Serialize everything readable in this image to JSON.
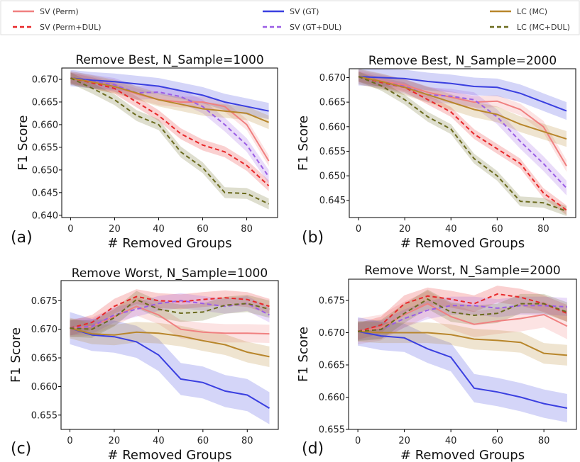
{
  "legend": {
    "entries": [
      {
        "key": "sv_perm",
        "label": "SV (Perm)",
        "color": "#f08080",
        "dashed": false
      },
      {
        "key": "sv_perm_dul",
        "label": "SV (Perm+DUL)",
        "color": "#e8282a",
        "dashed": true
      },
      {
        "key": "sv_gt",
        "label": "SV (GT)",
        "color": "#3a3fe0",
        "dashed": false
      },
      {
        "key": "sv_gt_dul",
        "label": "SV (GT+DUL)",
        "color": "#9b5de5",
        "dashed": true
      },
      {
        "key": "lc_mc",
        "label": "LC (MC)",
        "color": "#b8862b",
        "dashed": false
      },
      {
        "key": "lc_mc_dul",
        "label": "LC (MC+DUL)",
        "color": "#6b6b1e",
        "dashed": true
      }
    ]
  },
  "chart_data": [
    {
      "type": "line",
      "panel_label": "(a)",
      "title": "Remove Best, N_Sample=1000",
      "xlabel": "# Removed Groups",
      "ylabel": "F1 Score",
      "xlim": [
        -4,
        94
      ],
      "ylim": [
        0.6395,
        0.6725
      ],
      "xticks": [
        0,
        20,
        40,
        60,
        80
      ],
      "yticks": [
        0.64,
        0.645,
        0.65,
        0.655,
        0.66,
        0.665,
        0.67
      ],
      "ytick_labels": [
        "0.640",
        "0.645",
        "0.650",
        "0.655",
        "0.660",
        "0.665",
        "0.670"
      ],
      "x": [
        0,
        10,
        20,
        30,
        40,
        50,
        60,
        70,
        80,
        90
      ],
      "series": [
        {
          "key": "sv_perm",
          "values": [
            0.6703,
            0.6695,
            0.6684,
            0.6668,
            0.6655,
            0.665,
            0.665,
            0.664,
            0.66,
            0.652
          ],
          "band": 0.0012
        },
        {
          "key": "sv_perm_dul",
          "values": [
            0.6703,
            0.6692,
            0.668,
            0.665,
            0.662,
            0.658,
            0.6555,
            0.654,
            0.651,
            0.6465
          ],
          "band": 0.0012
        },
        {
          "key": "sv_gt",
          "values": [
            0.6703,
            0.6698,
            0.6695,
            0.669,
            0.6685,
            0.6675,
            0.6665,
            0.665,
            0.664,
            0.663
          ],
          "band": 0.0018
        },
        {
          "key": "sv_gt_dul",
          "values": [
            0.6703,
            0.6695,
            0.6688,
            0.667,
            0.6672,
            0.6662,
            0.664,
            0.66,
            0.6555,
            0.6485
          ],
          "band": 0.0015
        },
        {
          "key": "lc_mc",
          "values": [
            0.6703,
            0.6694,
            0.6684,
            0.667,
            0.6655,
            0.6645,
            0.6635,
            0.663,
            0.6625,
            0.6605
          ],
          "band": 0.0015
        },
        {
          "key": "lc_mc_dul",
          "values": [
            0.6703,
            0.668,
            0.6655,
            0.662,
            0.66,
            0.654,
            0.6505,
            0.645,
            0.6448,
            0.6425
          ],
          "band": 0.0012
        }
      ]
    },
    {
      "type": "line",
      "panel_label": "(b)",
      "title": "Remove Best, N_Sample=2000",
      "xlabel": "# Removed Groups",
      "ylabel": "F1 Score",
      "xlim": [
        -4,
        94
      ],
      "ylim": [
        0.6415,
        0.6718
      ],
      "xticks": [
        0,
        20,
        40,
        60,
        80
      ],
      "yticks": [
        0.645,
        0.65,
        0.655,
        0.66,
        0.665,
        0.67
      ],
      "ytick_labels": [
        "0.645",
        "0.650",
        "0.655",
        "0.660",
        "0.665",
        "0.670"
      ],
      "x": [
        0,
        10,
        20,
        30,
        40,
        50,
        60,
        70,
        80,
        90
      ],
      "series": [
        {
          "key": "sv_perm",
          "values": [
            0.6702,
            0.6693,
            0.6685,
            0.667,
            0.666,
            0.665,
            0.6652,
            0.6635,
            0.66,
            0.652
          ],
          "band": 0.0012
        },
        {
          "key": "sv_perm_dul",
          "values": [
            0.6702,
            0.669,
            0.668,
            0.6655,
            0.663,
            0.6585,
            0.6555,
            0.6525,
            0.6465,
            0.643
          ],
          "band": 0.001
        },
        {
          "key": "sv_gt",
          "values": [
            0.6702,
            0.67,
            0.6698,
            0.6692,
            0.6688,
            0.6682,
            0.668,
            0.6668,
            0.665,
            0.6632
          ],
          "band": 0.0018
        },
        {
          "key": "sv_gt_dul",
          "values": [
            0.6702,
            0.6692,
            0.6682,
            0.6665,
            0.6662,
            0.6655,
            0.662,
            0.657,
            0.6525,
            0.6475
          ],
          "band": 0.0015
        },
        {
          "key": "lc_mc",
          "values": [
            0.6702,
            0.6692,
            0.668,
            0.6665,
            0.665,
            0.6635,
            0.6625,
            0.6605,
            0.659,
            0.6575
          ],
          "band": 0.0016
        },
        {
          "key": "lc_mc_dul",
          "values": [
            0.6702,
            0.6683,
            0.6655,
            0.662,
            0.6595,
            0.6535,
            0.65,
            0.6448,
            0.6445,
            0.6428
          ],
          "band": 0.001
        }
      ]
    },
    {
      "type": "line",
      "panel_label": "(c)",
      "title": "Remove Worst, N_Sample=1000",
      "xlabel": "# Removed Groups",
      "ylabel": "F1 Score",
      "xlim": [
        -4,
        94
      ],
      "ylim": [
        0.6525,
        0.6785
      ],
      "xticks": [
        0,
        20,
        40,
        60,
        80
      ],
      "yticks": [
        0.655,
        0.66,
        0.665,
        0.67,
        0.675
      ],
      "ytick_labels": [
        "0.655",
        "0.660",
        "0.665",
        "0.670",
        "0.675"
      ],
      "x": [
        0,
        10,
        20,
        30,
        40,
        50,
        60,
        70,
        80,
        90
      ],
      "series": [
        {
          "key": "sv_perm",
          "values": [
            0.6702,
            0.6705,
            0.6722,
            0.674,
            0.6725,
            0.67,
            0.6695,
            0.6693,
            0.6693,
            0.6692
          ],
          "band": 0.0016
        },
        {
          "key": "sv_perm_dul",
          "values": [
            0.6702,
            0.6712,
            0.674,
            0.6757,
            0.675,
            0.6748,
            0.6752,
            0.6755,
            0.6752,
            0.674
          ],
          "band": 0.0013
        },
        {
          "key": "sv_gt",
          "values": [
            0.6702,
            0.669,
            0.6687,
            0.6678,
            0.6655,
            0.6613,
            0.6607,
            0.6592,
            0.6585,
            0.6562
          ],
          "band": 0.0028
        },
        {
          "key": "sv_gt_dul",
          "values": [
            0.6702,
            0.6705,
            0.6725,
            0.6735,
            0.6745,
            0.675,
            0.6745,
            0.674,
            0.6745,
            0.6725
          ],
          "band": 0.0013
        },
        {
          "key": "lc_mc",
          "values": [
            0.6702,
            0.6692,
            0.669,
            0.6695,
            0.6693,
            0.6688,
            0.668,
            0.6673,
            0.666,
            0.6652
          ],
          "band": 0.0018
        },
        {
          "key": "lc_mc_dul",
          "values": [
            0.6702,
            0.67,
            0.672,
            0.6752,
            0.6735,
            0.6728,
            0.673,
            0.6742,
            0.6745,
            0.6735
          ],
          "band": 0.0015
        }
      ]
    },
    {
      "type": "line",
      "panel_label": "(d)",
      "title": "Remove Worst, N_Sample=2000",
      "xlabel": "# Removed Groups",
      "ylabel": "F1 Score",
      "xlim": [
        -4,
        94
      ],
      "ylim": [
        0.655,
        0.6783
      ],
      "xticks": [
        0,
        20,
        40,
        60,
        80
      ],
      "yticks": [
        0.655,
        0.66,
        0.665,
        0.67,
        0.675
      ],
      "ytick_labels": [
        "0.655",
        "0.660",
        "0.665",
        "0.670",
        "0.675"
      ],
      "x": [
        0,
        10,
        20,
        30,
        40,
        50,
        60,
        70,
        80,
        90
      ],
      "series": [
        {
          "key": "sv_perm",
          "values": [
            0.6702,
            0.6708,
            0.6728,
            0.6745,
            0.6725,
            0.6713,
            0.6718,
            0.6722,
            0.6728,
            0.671
          ],
          "band": 0.002
        },
        {
          "key": "sv_perm_dul",
          "values": [
            0.6702,
            0.6712,
            0.6745,
            0.6757,
            0.6752,
            0.6745,
            0.676,
            0.6755,
            0.6745,
            0.673
          ],
          "band": 0.0013
        },
        {
          "key": "sv_gt",
          "values": [
            0.6702,
            0.6695,
            0.6692,
            0.6675,
            0.6662,
            0.6614,
            0.6608,
            0.66,
            0.659,
            0.6583
          ],
          "band": 0.0022
        },
        {
          "key": "sv_gt_dul",
          "values": [
            0.6702,
            0.6705,
            0.6722,
            0.6735,
            0.6742,
            0.6742,
            0.6738,
            0.6742,
            0.6742,
            0.674
          ],
          "band": 0.0014
        },
        {
          "key": "lc_mc",
          "values": [
            0.6702,
            0.67,
            0.67,
            0.67,
            0.6697,
            0.669,
            0.6688,
            0.6685,
            0.6668,
            0.6665
          ],
          "band": 0.0016
        },
        {
          "key": "lc_mc_dul",
          "values": [
            0.6702,
            0.6705,
            0.673,
            0.6752,
            0.6732,
            0.6727,
            0.673,
            0.6745,
            0.6745,
            0.6732
          ],
          "band": 0.0015
        }
      ]
    }
  ]
}
